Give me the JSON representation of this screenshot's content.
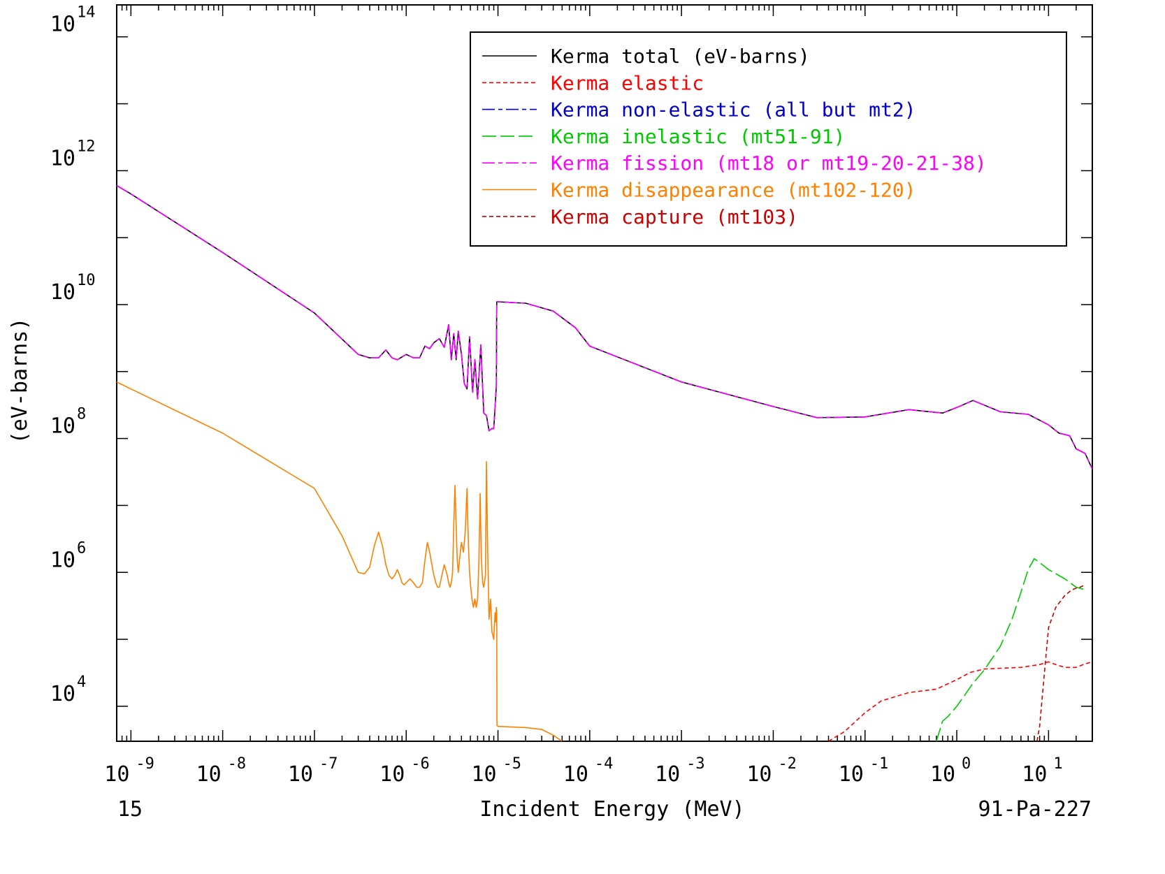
{
  "chart_data": {
    "type": "line",
    "title": "",
    "xlabel": "Incident Energy (MeV)",
    "ylabel": "(eV-barns)",
    "x_scale": "log",
    "y_scale": "log",
    "xlim": [
      7e-10,
      30
    ],
    "ylim": [
      3000,
      300000000000000.0
    ],
    "x_ticks": [
      {
        "base": "10",
        "exp": "-9"
      },
      {
        "base": "10",
        "exp": "-8"
      },
      {
        "base": "10",
        "exp": "-7"
      },
      {
        "base": "10",
        "exp": "-6"
      },
      {
        "base": "10",
        "exp": "-5"
      },
      {
        "base": "10",
        "exp": "-4"
      },
      {
        "base": "10",
        "exp": "-3"
      },
      {
        "base": "10",
        "exp": "-2"
      },
      {
        "base": "10",
        "exp": "-1"
      },
      {
        "base": "10",
        "exp": "0"
      },
      {
        "base": "10",
        "exp": "1"
      }
    ],
    "y_ticks": [
      {
        "base": "10",
        "exp": "4"
      },
      {
        "base": "10",
        "exp": "6"
      },
      {
        "base": "10",
        "exp": "8"
      },
      {
        "base": "10",
        "exp": "10"
      },
      {
        "base": "10",
        "exp": "12"
      },
      {
        "base": "10",
        "exp": "14"
      }
    ],
    "footer_left": "15",
    "footer_right": "91-Pa-227",
    "grid": false,
    "legend_position": "top-right",
    "series": [
      {
        "name": "Kerma total  (eV-barns)",
        "color": "#000000",
        "dash": "solid",
        "x": [
          7e-10,
          1e-09,
          1e-08,
          1e-07,
          3e-07,
          4e-07,
          5e-07,
          6e-07,
          7e-07,
          8e-07,
          1e-06,
          1.2e-06,
          1.4e-06,
          1.6e-06,
          1.8e-06,
          2e-06,
          2.3e-06,
          2.6e-06,
          2.9e-06,
          3.1e-06,
          3.3e-06,
          3.5e-06,
          3.7e-06,
          4e-06,
          4.3e-06,
          4.6e-06,
          4.9e-06,
          5.3e-06,
          5.6e-06,
          6e-06,
          6.5e-06,
          7e-06,
          7.5e-06,
          8e-06,
          8.5e-06,
          9e-06,
          9.6e-06,
          9.7e-06,
          1e-05,
          2e-05,
          4e-05,
          7e-05,
          0.0001,
          0.001,
          0.01,
          0.03,
          0.1,
          0.3,
          0.7,
          1.0,
          1.5,
          3,
          6,
          10,
          13,
          17,
          20,
          25,
          30
        ],
        "y": [
          600000000000.0,
          450000000000.0,
          60000000000.0,
          7500000000.0,
          1800000000.0,
          1600000000.0,
          1600000000.0,
          2100000000.0,
          1600000000.0,
          1500000000.0,
          1800000000.0,
          1600000000.0,
          1600000000.0,
          2400000000.0,
          2200000000.0,
          2700000000.0,
          3100000000.0,
          2300000000.0,
          5000000000.0,
          1500000000.0,
          3700000000.0,
          1500000000.0,
          4000000000.0,
          1800000000.0,
          660000000.0,
          550000000.0,
          3300000000.0,
          490000000.0,
          1500000000.0,
          390000000.0,
          2500000000.0,
          240000000.0,
          220000000.0,
          130000000.0,
          140000000.0,
          140000000.0,
          600000000.0,
          11000000000.0,
          11000000000.0,
          10500000000.0,
          8000000000.0,
          4500000000.0,
          2400000000.0,
          700000000.0,
          300000000.0,
          205000000.0,
          210000000.0,
          270000000.0,
          240000000.0,
          290000000.0,
          370000000.0,
          250000000.0,
          230000000.0,
          160000000.0,
          120000000.0,
          110000000.0,
          70000000.0,
          60000000.0,
          35000000.0
        ]
      },
      {
        "name": "Kerma elastic",
        "color": "#ff0000",
        "dash": "short",
        "x": [
          0.04,
          0.06,
          0.1,
          0.15,
          0.3,
          0.6,
          1.0,
          1.4,
          2.0,
          3.0,
          5.0,
          8.0,
          10,
          12,
          15,
          20,
          25,
          30
        ],
        "y": [
          3000,
          4200,
          8000,
          12000.0,
          16000.0,
          18000.0,
          25000.0,
          32000.0,
          36000.0,
          37000.0,
          38000.0,
          42000.0,
          46000.0,
          42000.0,
          38000.0,
          38000.0,
          43000.0,
          46000.0
        ]
      },
      {
        "name": "Kerma non-elastic (all but mt2)",
        "color": "#0000c8",
        "dash": "dashdot",
        "x": [
          7e-10,
          1e-09,
          1e-08,
          1e-07,
          3e-07,
          4e-07,
          5e-07,
          6e-07,
          7e-07,
          8e-07,
          1e-06,
          1.2e-06,
          1.4e-06,
          1.6e-06,
          1.8e-06,
          2e-06,
          2.3e-06,
          2.6e-06,
          2.9e-06,
          3.1e-06,
          3.3e-06,
          3.5e-06,
          3.7e-06,
          4e-06,
          4.3e-06,
          4.6e-06,
          4.9e-06,
          5.3e-06,
          5.6e-06,
          6e-06,
          6.5e-06,
          7e-06,
          7.5e-06,
          8e-06,
          8.5e-06,
          9e-06,
          9.6e-06,
          9.7e-06,
          1e-05,
          2e-05,
          4e-05,
          7e-05,
          0.0001,
          0.001,
          0.01,
          0.03,
          0.1,
          0.3,
          0.7,
          1.0,
          1.5,
          3,
          6,
          10,
          13,
          17,
          20,
          25,
          30
        ],
        "y": [
          600000000000.0,
          450000000000.0,
          60000000000.0,
          7500000000.0,
          1800000000.0,
          1600000000.0,
          1600000000.0,
          2100000000.0,
          1600000000.0,
          1500000000.0,
          1800000000.0,
          1600000000.0,
          1600000000.0,
          2400000000.0,
          2200000000.0,
          2700000000.0,
          3100000000.0,
          2300000000.0,
          5000000000.0,
          1500000000.0,
          3700000000.0,
          1500000000.0,
          4000000000.0,
          1800000000.0,
          660000000.0,
          550000000.0,
          3300000000.0,
          490000000.0,
          1500000000.0,
          390000000.0,
          2500000000.0,
          240000000.0,
          220000000.0,
          130000000.0,
          140000000.0,
          140000000.0,
          600000000.0,
          11000000000.0,
          11000000000.0,
          10500000000.0,
          8000000000.0,
          4500000000.0,
          2400000000.0,
          700000000.0,
          300000000.0,
          205000000.0,
          210000000.0,
          270000000.0,
          240000000.0,
          290000000.0,
          370000000.0,
          250000000.0,
          230000000.0,
          160000000.0,
          120000000.0,
          110000000.0,
          70000000.0,
          60000000.0,
          35000000.0
        ]
      },
      {
        "name": "Kerma inelastic (mt51-91)",
        "color": "#00c800",
        "dash": "long",
        "x": [
          0.6,
          0.7,
          0.8,
          1.0,
          1.5,
          2.0,
          3.0,
          4.0,
          5.0,
          6.0,
          7.0,
          8.0,
          10,
          15,
          20,
          25
        ],
        "y": [
          3000,
          6000,
          7000,
          10000.0,
          22000.0,
          35000.0,
          80000.0,
          200000.0,
          500000.0,
          1100000.0,
          1600000.0,
          1400000.0,
          1100000.0,
          800000.0,
          600000.0,
          550000.0
        ]
      },
      {
        "name": "Kerma fission (mt18 or mt19-20-21-38)",
        "color": "#ff00ff",
        "dash": "dashdot",
        "x": [
          7e-10,
          1e-09,
          1e-08,
          1e-07,
          3e-07,
          4e-07,
          5e-07,
          6e-07,
          7e-07,
          8e-07,
          1e-06,
          1.2e-06,
          1.4e-06,
          1.6e-06,
          1.8e-06,
          2e-06,
          2.3e-06,
          2.6e-06,
          2.9e-06,
          3.1e-06,
          3.3e-06,
          3.5e-06,
          3.7e-06,
          4e-06,
          4.3e-06,
          4.6e-06,
          4.9e-06,
          5.3e-06,
          5.6e-06,
          6e-06,
          6.5e-06,
          7e-06,
          7.5e-06,
          8e-06,
          8.5e-06,
          9e-06,
          9.6e-06,
          9.7e-06,
          1e-05,
          2e-05,
          4e-05,
          7e-05,
          0.0001,
          0.001,
          0.01,
          0.03,
          0.1,
          0.3,
          0.7,
          1.0,
          1.5,
          3,
          6,
          10,
          13,
          17,
          20,
          25,
          30
        ],
        "y": [
          600000000000.0,
          450000000000.0,
          60000000000.0,
          7500000000.0,
          1800000000.0,
          1600000000.0,
          1600000000.0,
          2100000000.0,
          1600000000.0,
          1500000000.0,
          1800000000.0,
          1600000000.0,
          1600000000.0,
          2400000000.0,
          2200000000.0,
          2700000000.0,
          3100000000.0,
          2300000000.0,
          5000000000.0,
          1500000000.0,
          3700000000.0,
          1500000000.0,
          4000000000.0,
          1800000000.0,
          660000000.0,
          550000000.0,
          3300000000.0,
          490000000.0,
          1500000000.0,
          390000000.0,
          2500000000.0,
          240000000.0,
          220000000.0,
          130000000.0,
          140000000.0,
          140000000.0,
          600000000.0,
          11000000000.0,
          11000000000.0,
          10500000000.0,
          8000000000.0,
          4500000000.0,
          2400000000.0,
          700000000.0,
          300000000.0,
          205000000.0,
          210000000.0,
          270000000.0,
          240000000.0,
          290000000.0,
          370000000.0,
          250000000.0,
          230000000.0,
          160000000.0,
          120000000.0,
          110000000.0,
          70000000.0,
          60000000.0,
          35000000.0
        ]
      },
      {
        "name": "Kerma disappearance (mt102-120)",
        "color": "#ff8000",
        "dash": "solid",
        "x": [
          7e-10,
          1e-09,
          1e-08,
          1e-07,
          2e-07,
          3e-07,
          3.5e-07,
          4e-07,
          4.5e-07,
          5e-07,
          5.5e-07,
          6e-07,
          6.5e-07,
          7e-07,
          7.5e-07,
          8e-07,
          8.5e-07,
          9e-07,
          9.5e-07,
          1e-06,
          1.1e-06,
          1.2e-06,
          1.3e-06,
          1.4e-06,
          1.5e-06,
          1.6e-06,
          1.7e-06,
          1.8e-06,
          2e-06,
          2.1e-06,
          2.2e-06,
          2.3e-06,
          2.4e-06,
          2.6e-06,
          2.8e-06,
          2.9e-06,
          3e-06,
          3.1e-06,
          3.2e-06,
          3.3e-06,
          3.4e-06,
          3.5e-06,
          3.6e-06,
          3.7e-06,
          3.8e-06,
          4e-06,
          4.2e-06,
          4.4e-06,
          4.6e-06,
          4.7e-06,
          4.8e-06,
          4.9e-06,
          5e-06,
          5.2e-06,
          5.4e-06,
          5.5e-06,
          5.6e-06,
          5.7e-06,
          5.8e-06,
          6e-06,
          6.2e-06,
          6.4e-06,
          6.5e-06,
          6.6e-06,
          6.8e-06,
          7e-06,
          7.3e-06,
          7.5e-06,
          7.7e-06,
          8e-06,
          8.3e-06,
          8.6e-06,
          9e-06,
          9.3e-06,
          9.5e-06,
          9.6e-06,
          9.7e-06,
          9.75e-06,
          1e-05,
          2e-05,
          3e-05,
          4e-05,
          5e-05
        ],
        "y": [
          700000000.0,
          550000000.0,
          120000000.0,
          18000000.0,
          3500000.0,
          1000000.0,
          950000.0,
          1200000.0,
          2500000.0,
          4000000.0,
          2500000.0,
          1300000.0,
          900000.0,
          800000.0,
          900000.0,
          1100000.0,
          900000.0,
          700000.0,
          650000.0,
          700000.0,
          800000.0,
          700000.0,
          600000.0,
          600000.0,
          700000.0,
          1500000.0,
          2800000.0,
          2000000.0,
          900000.0,
          700000.0,
          600000.0,
          600000.0,
          800000.0,
          1300000.0,
          900000.0,
          700000.0,
          600000.0,
          700000.0,
          1000000.0,
          5000000.0,
          20000000.0,
          5000000.0,
          1500000.0,
          1000000.0,
          1500000.0,
          2800000.0,
          2000000.0,
          4000000.0,
          18000000.0,
          5000000.0,
          2000000.0,
          1000000.0,
          700000.0,
          400000.0,
          300000.0,
          350000.0,
          400000.0,
          350000.0,
          300000.0,
          400000.0,
          1500000.0,
          15000000.0,
          4000000.0,
          1500000.0,
          700000.0,
          600000.0,
          900000.0,
          45000000.0,
          3000000.0,
          200000.0,
          400000.0,
          130000.0,
          100000.0,
          250000.0,
          180000.0,
          300000.0,
          260000.0,
          5200,
          5000,
          4800,
          4500,
          3700,
          3000
        ]
      },
      {
        "name": "Kerma capture (mt103)",
        "color": "#c80000",
        "dash": "short",
        "x": [
          7.5,
          8,
          9,
          10,
          12,
          15,
          18,
          20,
          22,
          25
        ],
        "y": [
          3000,
          5000,
          30000.0,
          150000.0,
          300000.0,
          450000.0,
          550000.0,
          580000.0,
          600000.0,
          650000.0
        ]
      }
    ]
  }
}
